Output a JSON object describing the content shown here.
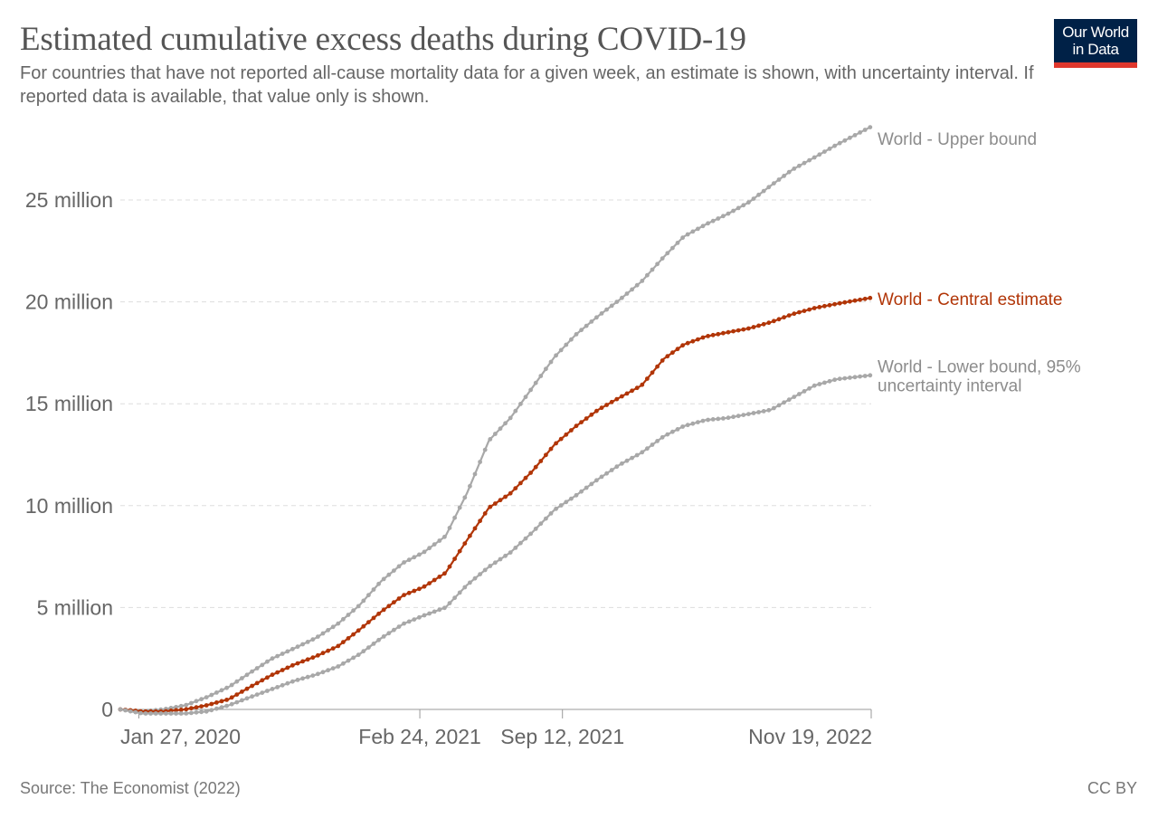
{
  "title": "Estimated cumulative excess deaths during COVID-19",
  "subtitle": "For countries that have not reported all-cause mortality data for a given week, an estimate is shown, with uncertainty interval. If reported data is available, that value only is shown.",
  "logo": {
    "line1": "Our World",
    "line2": "in Data",
    "bg_color": "#002147",
    "accent_color": "#e0372d"
  },
  "source": "Source: The Economist (2022)",
  "license": "CC BY",
  "chart_data": {
    "type": "line",
    "x_start": "2020-01-01",
    "x_end": "2022-11-19",
    "xticks": [
      {
        "date": "2020-01-27",
        "label": "Jan 27, 2020"
      },
      {
        "date": "2021-02-24",
        "label": "Feb 24, 2021"
      },
      {
        "date": "2021-09-12",
        "label": "Sep 12, 2021"
      },
      {
        "date": "2022-11-19",
        "label": "Nov 19, 2022"
      }
    ],
    "yticks": [
      {
        "value": 0,
        "label": "0"
      },
      {
        "value": 5000000,
        "label": "5 million"
      },
      {
        "value": 10000000,
        "label": "10 million"
      },
      {
        "value": 15000000,
        "label": "15 million"
      },
      {
        "value": 20000000,
        "label": "20 million"
      },
      {
        "value": 25000000,
        "label": "25 million"
      }
    ],
    "ylim": [
      -400000,
      28500000
    ],
    "grid": "horizontal dashed",
    "series": [
      {
        "name": "World - Upper bound",
        "color": "#a8a8a8",
        "label_color": "#8c8c8c",
        "points": [
          [
            "2020-01-01",
            0
          ],
          [
            "2020-02-01",
            -100000
          ],
          [
            "2020-03-01",
            0
          ],
          [
            "2020-04-01",
            200000
          ],
          [
            "2020-05-01",
            600000
          ],
          [
            "2020-06-01",
            1100000
          ],
          [
            "2020-07-01",
            1800000
          ],
          [
            "2020-08-01",
            2500000
          ],
          [
            "2020-09-01",
            3000000
          ],
          [
            "2020-10-01",
            3500000
          ],
          [
            "2020-11-01",
            4200000
          ],
          [
            "2020-12-01",
            5100000
          ],
          [
            "2021-01-01",
            6300000
          ],
          [
            "2021-02-01",
            7200000
          ],
          [
            "2021-03-01",
            7700000
          ],
          [
            "2021-04-01",
            8500000
          ],
          [
            "2021-05-01",
            10600000
          ],
          [
            "2021-06-01",
            13200000
          ],
          [
            "2021-07-01",
            14300000
          ],
          [
            "2021-08-01",
            15800000
          ],
          [
            "2021-09-01",
            17300000
          ],
          [
            "2021-10-01",
            18400000
          ],
          [
            "2021-11-01",
            19300000
          ],
          [
            "2021-12-01",
            20100000
          ],
          [
            "2022-01-01",
            21000000
          ],
          [
            "2022-02-01",
            22200000
          ],
          [
            "2022-03-01",
            23200000
          ],
          [
            "2022-04-01",
            23800000
          ],
          [
            "2022-05-01",
            24300000
          ],
          [
            "2022-06-01",
            24900000
          ],
          [
            "2022-07-01",
            25700000
          ],
          [
            "2022-08-01",
            26500000
          ],
          [
            "2022-09-01",
            27100000
          ],
          [
            "2022-10-01",
            27700000
          ],
          [
            "2022-11-19",
            28600000
          ]
        ]
      },
      {
        "name": "World - Central estimate",
        "color": "#b13507",
        "label_color": "#b13507",
        "points": [
          [
            "2020-01-01",
            0
          ],
          [
            "2020-02-01",
            -100000
          ],
          [
            "2020-03-01",
            -100000
          ],
          [
            "2020-04-01",
            0
          ],
          [
            "2020-05-01",
            200000
          ],
          [
            "2020-06-01",
            500000
          ],
          [
            "2020-07-01",
            1100000
          ],
          [
            "2020-08-01",
            1700000
          ],
          [
            "2020-09-01",
            2200000
          ],
          [
            "2020-10-01",
            2600000
          ],
          [
            "2020-11-01",
            3100000
          ],
          [
            "2020-12-01",
            3900000
          ],
          [
            "2021-01-01",
            4800000
          ],
          [
            "2021-02-01",
            5600000
          ],
          [
            "2021-03-01",
            6000000
          ],
          [
            "2021-04-01",
            6700000
          ],
          [
            "2021-05-01",
            8300000
          ],
          [
            "2021-06-01",
            9900000
          ],
          [
            "2021-07-01",
            10600000
          ],
          [
            "2021-08-01",
            11700000
          ],
          [
            "2021-09-01",
            13000000
          ],
          [
            "2021-10-01",
            13900000
          ],
          [
            "2021-11-01",
            14700000
          ],
          [
            "2021-12-01",
            15300000
          ],
          [
            "2022-01-01",
            15900000
          ],
          [
            "2022-02-01",
            17200000
          ],
          [
            "2022-03-01",
            17900000
          ],
          [
            "2022-04-01",
            18300000
          ],
          [
            "2022-05-01",
            18500000
          ],
          [
            "2022-06-01",
            18700000
          ],
          [
            "2022-07-01",
            19000000
          ],
          [
            "2022-08-01",
            19400000
          ],
          [
            "2022-09-01",
            19700000
          ],
          [
            "2022-10-01",
            19900000
          ],
          [
            "2022-11-19",
            20200000
          ]
        ]
      },
      {
        "name": "World - Lower bound, 95% uncertainty interval",
        "label_lines": [
          "World - Lower bound, 95%",
          "uncertainty interval"
        ],
        "color": "#a8a8a8",
        "label_color": "#8c8c8c",
        "points": [
          [
            "2020-01-01",
            0
          ],
          [
            "2020-02-01",
            -200000
          ],
          [
            "2020-03-01",
            -200000
          ],
          [
            "2020-04-01",
            -200000
          ],
          [
            "2020-05-01",
            -100000
          ],
          [
            "2020-06-01",
            200000
          ],
          [
            "2020-07-01",
            600000
          ],
          [
            "2020-08-01",
            1000000
          ],
          [
            "2020-09-01",
            1400000
          ],
          [
            "2020-10-01",
            1700000
          ],
          [
            "2020-11-01",
            2100000
          ],
          [
            "2020-12-01",
            2700000
          ],
          [
            "2021-01-01",
            3500000
          ],
          [
            "2021-02-01",
            4200000
          ],
          [
            "2021-03-01",
            4600000
          ],
          [
            "2021-04-01",
            5000000
          ],
          [
            "2021-05-01",
            6100000
          ],
          [
            "2021-06-01",
            7000000
          ],
          [
            "2021-07-01",
            7700000
          ],
          [
            "2021-08-01",
            8700000
          ],
          [
            "2021-09-01",
            9800000
          ],
          [
            "2021-10-01",
            10500000
          ],
          [
            "2021-11-01",
            11300000
          ],
          [
            "2021-12-01",
            12000000
          ],
          [
            "2022-01-01",
            12600000
          ],
          [
            "2022-02-01",
            13400000
          ],
          [
            "2022-03-01",
            13900000
          ],
          [
            "2022-04-01",
            14200000
          ],
          [
            "2022-05-01",
            14300000
          ],
          [
            "2022-06-01",
            14500000
          ],
          [
            "2022-07-01",
            14700000
          ],
          [
            "2022-08-01",
            15300000
          ],
          [
            "2022-09-01",
            15900000
          ],
          [
            "2022-10-01",
            16200000
          ],
          [
            "2022-11-19",
            16400000
          ]
        ]
      }
    ]
  }
}
